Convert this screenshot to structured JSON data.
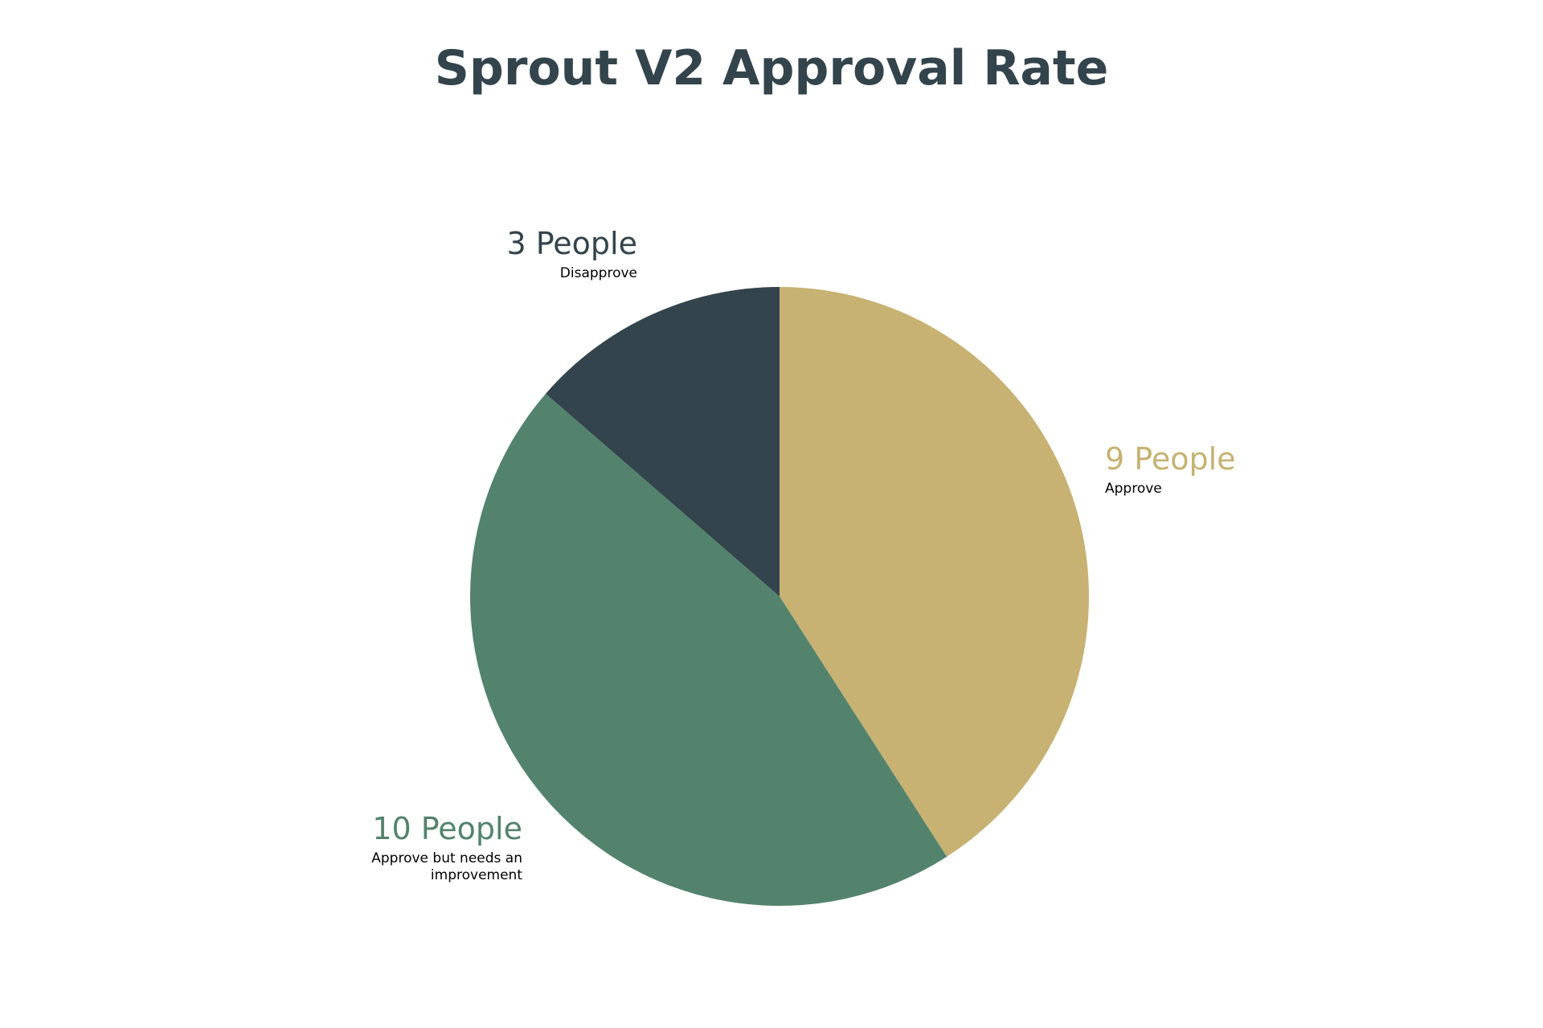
{
  "chart_data": {
    "type": "pie",
    "title": "Sprout V2 Approval Rate",
    "categories": [
      "Approve",
      "Approve but needs an improvement",
      "Disapprove"
    ],
    "values": [
      9,
      10,
      3
    ],
    "value_labels": [
      "9 People",
      "10 People",
      "3 People"
    ],
    "colors": [
      "#c7b273",
      "#53836d",
      "#33444c"
    ]
  }
}
